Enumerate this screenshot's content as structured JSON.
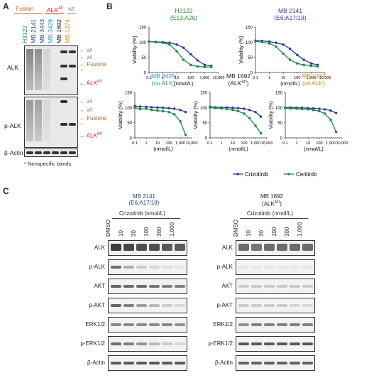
{
  "panel_a": {
    "label": "A",
    "groups": {
      "fusion": "Fusion",
      "alk_ati": "ALK",
      "alk_ati_sup": "ATI",
      "wt": "wt"
    },
    "lanes": [
      {
        "name": "H3122",
        "color": "#2e8b3e"
      },
      {
        "name": "MB 2141",
        "color": "#2b3b8f"
      },
      {
        "name": "MB 3443",
        "color": "#2b3b8f"
      },
      {
        "name": "MB 3429",
        "color": "#2a9bb0"
      },
      {
        "name": "MB 1692",
        "color": "#222222"
      },
      {
        "name": "MB 1374",
        "color": "#e08a1e"
      }
    ],
    "rows": {
      "alk": "ALK",
      "palk": "p-ALK",
      "actin": "β-Actin"
    },
    "markers": {
      "wt": "wt",
      "fusions": "Fusions",
      "alk": "ALK",
      "alk_sup": "ATI"
    },
    "footnote": "* Nonspecific bands",
    "colors": {
      "wt": "#888888",
      "fusions": "#b4682a",
      "alkati": "#d42020"
    }
  },
  "panel_b": {
    "label": "B",
    "ylabel": "Viability (%)",
    "xlabel": "(nmol/L)",
    "legend": {
      "crizotinib": "Crizotinib",
      "ceritinib": "Ceritinib"
    },
    "colors": {
      "crizotinib": "#2b3b8f",
      "ceritinib": "#1e8c4a"
    }
  },
  "chart_data": [
    {
      "type": "line",
      "title": "H3122",
      "subtitle": "(E13;A20)",
      "title_color": "#2e8b3e",
      "xlabel": "(nmol/L)",
      "ylabel": "Viability (%)",
      "x_scale": "log",
      "xlim": [
        0.1,
        10000
      ],
      "ylim": [
        0,
        150
      ],
      "x": [
        0.1,
        0.3,
        1,
        3,
        10,
        30,
        100,
        300,
        1000,
        3000
      ],
      "series": [
        {
          "name": "Crizotinib",
          "values": [
            102,
            101,
            100,
            98,
            92,
            82,
            60,
            40,
            25,
            22
          ]
        },
        {
          "name": "Ceritinib",
          "values": [
            102,
            100,
            98,
            92,
            70,
            42,
            25,
            20,
            18,
            18
          ]
        }
      ]
    },
    {
      "type": "line",
      "title": "MB 2141",
      "subtitle": "(E6;A17/18)",
      "title_color": "#2b3b8f",
      "xlabel": "(nmol/L)",
      "ylabel": "Viability (%)",
      "x_scale": "log",
      "xlim": [
        0.1,
        10000
      ],
      "ylim": [
        0,
        150
      ],
      "x": [
        0.1,
        0.3,
        1,
        3,
        10,
        30,
        100,
        300,
        1000,
        3000
      ],
      "series": [
        {
          "name": "Crizotinib",
          "values": [
            105,
            104,
            102,
            98,
            92,
            78,
            58,
            42,
            30,
            25
          ]
        },
        {
          "name": "Ceritinib",
          "values": [
            103,
            100,
            96,
            85,
            62,
            42,
            30,
            25,
            22,
            20
          ]
        }
      ]
    },
    {
      "type": "line",
      "title": "MB 3429",
      "subtitle": "(no ALK)",
      "title_color": "#2a9bb0",
      "xlabel": "(nmol/L)",
      "ylabel": "Viability (%)",
      "x_scale": "log",
      "xlim": [
        0.1,
        10000
      ],
      "ylim": [
        0,
        150
      ],
      "x": [
        0.1,
        0.3,
        1,
        3,
        10,
        30,
        100,
        300,
        1000,
        3000
      ],
      "series": [
        {
          "name": "Crizotinib",
          "values": [
            105,
            103,
            102,
            101,
            100,
            99,
            98,
            96,
            92,
            85
          ]
        },
        {
          "name": "Ceritinib",
          "values": [
            100,
            95,
            96,
            92,
            90,
            88,
            85,
            78,
            55,
            10
          ]
        }
      ]
    },
    {
      "type": "line",
      "title": "MB 1692",
      "subtitle": "(ALK",
      "subtitle_sup": "ATI",
      "subtitle_end": ")",
      "title_color": "#222222",
      "xlabel": "(nmol/L)",
      "ylabel": "Viability (%)",
      "x_scale": "log",
      "xlim": [
        0.1,
        10000
      ],
      "ylim": [
        0,
        150
      ],
      "x": [
        0.1,
        0.3,
        1,
        3,
        10,
        30,
        100,
        300,
        1000,
        3000
      ],
      "series": [
        {
          "name": "Crizotinib",
          "values": [
            102,
            101,
            100,
            100,
            99,
            98,
            96,
            92,
            85,
            70
          ]
        },
        {
          "name": "Ceritinib",
          "values": [
            100,
            98,
            97,
            95,
            92,
            88,
            80,
            65,
            40,
            15
          ]
        }
      ]
    },
    {
      "type": "line",
      "title": "MB 1374",
      "subtitle": "(wt ALK)",
      "title_color": "#e08a1e",
      "xlabel": "(nmol/L)",
      "ylabel": "Viability (%)",
      "x_scale": "log",
      "xlim": [
        0.1,
        10000
      ],
      "ylim": [
        0,
        150
      ],
      "x": [
        0.1,
        0.3,
        1,
        3,
        10,
        30,
        100,
        300,
        1000,
        3000
      ],
      "series": [
        {
          "name": "Crizotinib",
          "values": [
            100,
            100,
            99,
            99,
            98,
            97,
            96,
            94,
            90,
            82
          ]
        },
        {
          "name": "Ceritinib",
          "values": [
            98,
            97,
            96,
            95,
            94,
            92,
            88,
            80,
            60,
            20
          ]
        }
      ]
    }
  ],
  "panel_c": {
    "label": "C",
    "left": {
      "title": "MB 2141",
      "subtitle": "(E6;A17/18)",
      "title_color": "#2b3b8f"
    },
    "right": {
      "title": "MB 1692",
      "subtitle": "(ALK",
      "subtitle_sup": "ATI",
      "subtitle_end": ")",
      "title_color": "#222222"
    },
    "treatment": "Crizotinib (nmol/L)",
    "lanes": [
      "DMSO",
      "10",
      "30",
      "100",
      "300",
      "1,000"
    ],
    "rows": [
      "ALK",
      "p-ALK",
      "AKT",
      "p-AKT",
      "ERK1/2",
      "p-ERK1/2",
      "β-Actin"
    ],
    "left_intensity": [
      [
        0.95,
        0.9,
        0.85,
        0.85,
        0.8,
        0.8
      ],
      [
        0.7,
        0.35,
        0.2,
        0.15,
        0.1,
        0.05
      ],
      [
        0.75,
        0.7,
        0.7,
        0.65,
        0.6,
        0.6
      ],
      [
        0.75,
        0.6,
        0.45,
        0.3,
        0.2,
        0.15
      ],
      [
        0.55,
        0.55,
        0.55,
        0.55,
        0.55,
        0.5
      ],
      [
        0.7,
        0.6,
        0.5,
        0.3,
        0.2,
        0.15
      ],
      [
        0.8,
        0.8,
        0.8,
        0.8,
        0.8,
        0.8
      ]
    ],
    "right_intensity": [
      [
        0.7,
        0.65,
        0.7,
        0.7,
        0.7,
        0.7
      ],
      [
        0.05,
        0.05,
        0.05,
        0.05,
        0.05,
        0.05
      ],
      [
        0.2,
        0.2,
        0.2,
        0.2,
        0.2,
        0.2
      ],
      [
        0.2,
        0.2,
        0.2,
        0.2,
        0.15,
        0.15
      ],
      [
        0.5,
        0.6,
        0.6,
        0.6,
        0.6,
        0.6
      ],
      [
        0.8,
        0.8,
        0.8,
        0.8,
        0.8,
        0.8
      ],
      [
        0.75,
        0.75,
        0.75,
        0.75,
        0.75,
        0.75
      ]
    ]
  }
}
